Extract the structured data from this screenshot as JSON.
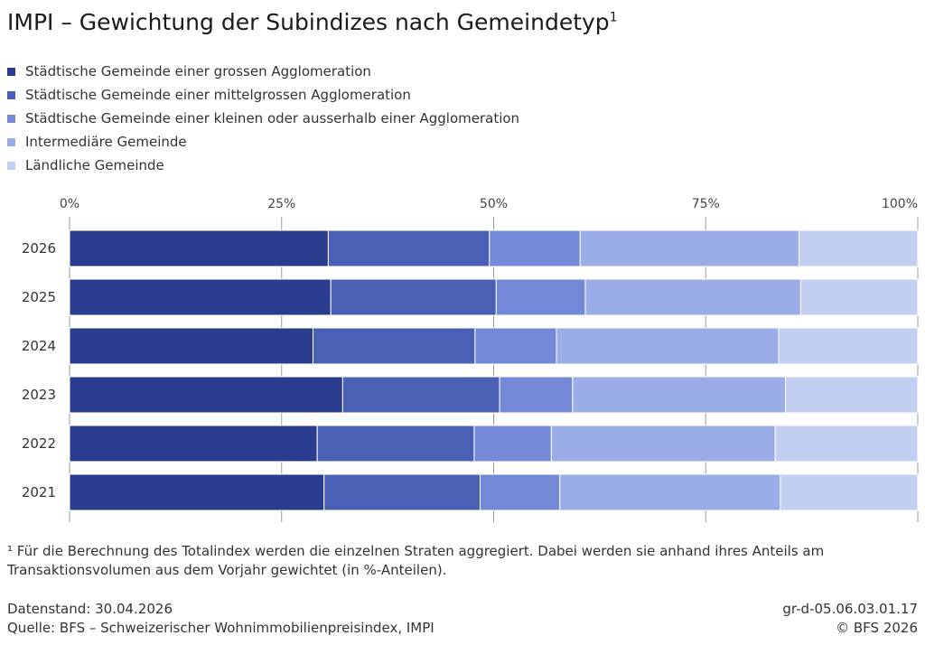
{
  "title": "IMPI – Gewichtung der Subindizes nach Gemeindetyp",
  "title_sup": "1",
  "chart_data": {
    "type": "bar",
    "orientation": "horizontal",
    "stacking": "percent",
    "title": "IMPI – Gewichtung der Subindizes nach Gemeindetyp",
    "categories": [
      "2026",
      "2025",
      "2024",
      "2023",
      "2022",
      "2021"
    ],
    "series": [
      {
        "name": "Städtische Gemeinde einer grossen Agglomeration",
        "color": "#2a3c8d",
        "values": [
          30.5,
          30.8,
          28.7,
          32.2,
          29.2,
          30.0
        ]
      },
      {
        "name": "Städtische Gemeinde einer mittelgrossen Agglomeration",
        "color": "#4a60b5",
        "values": [
          19.0,
          19.5,
          19.1,
          18.5,
          18.5,
          18.4
        ]
      },
      {
        "name": "Städtische Gemeinde einer kleinen oder ausserhalb einer Agglomeration",
        "color": "#7389d8",
        "values": [
          10.7,
          10.5,
          9.6,
          8.6,
          9.1,
          9.4
        ]
      },
      {
        "name": "Intermediäre Gemeinde",
        "color": "#9aade6",
        "values": [
          25.8,
          25.4,
          26.2,
          25.1,
          26.4,
          26.0
        ]
      },
      {
        "name": "Ländliche Gemeinde",
        "color": "#c3cff1",
        "values": [
          14.0,
          13.8,
          16.4,
          15.6,
          16.8,
          16.2
        ]
      }
    ],
    "xlim": [
      0,
      100
    ],
    "x_ticks": [
      "0%",
      "25%",
      "50%",
      "75%",
      "100%"
    ],
    "grid": true,
    "legend_position": "top-left"
  },
  "footnote": "¹ Für die Berechnung des Totalindex werden die einzelnen Straten aggregiert. Dabei werden sie anhand ihres Anteils am Transaktionsvolumen aus dem Vorjahr gewichtet (in %-Anteilen).",
  "footer": {
    "data_status": "Datenstand: 30.04.2026",
    "source": "Quelle: BFS – Schweizerischer Wohnimmobilienpreisindex, IMPI",
    "code": "gr-d-05.06.03.01.17",
    "copyright": "© BFS 2026"
  }
}
